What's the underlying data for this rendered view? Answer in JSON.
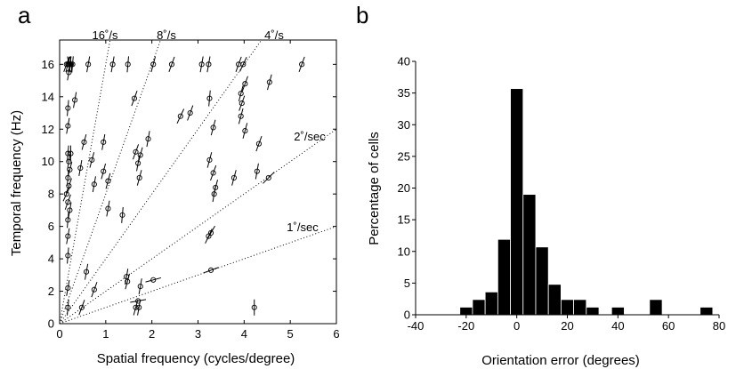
{
  "chart_data": [
    {
      "type": "scatter",
      "panel_label": "a",
      "xlabel": "Spatial frequency (cycles/degree)",
      "ylabel": "Temporal frequency (Hz)",
      "xlim": [
        0,
        6
      ],
      "ylim": [
        0,
        17.5
      ],
      "xticks": [
        "0",
        "1",
        "2",
        "3",
        "4",
        "5",
        "6"
      ],
      "yticks": [
        "0",
        "2",
        "4",
        "6",
        "8",
        "10",
        "12",
        "14",
        "16"
      ],
      "speed_lines": [
        {
          "label": "16˚/s",
          "speed": 16
        },
        {
          "label": "8˚/s",
          "speed": 8
        },
        {
          "label": "4˚/s",
          "speed": 4
        },
        {
          "label": "2˚/sec",
          "speed": 2
        },
        {
          "label": "1˚/sec",
          "speed": 1
        }
      ],
      "points": [
        {
          "x": 0.18,
          "y": 16.0,
          "angle": 75
        },
        {
          "x": 0.22,
          "y": 16.0,
          "angle": 80
        },
        {
          "x": 0.25,
          "y": 16.0,
          "angle": 95
        },
        {
          "x": 0.15,
          "y": 16.0,
          "angle": 70
        },
        {
          "x": 0.28,
          "y": 16.0,
          "angle": 85
        },
        {
          "x": 0.2,
          "y": 16.0,
          "angle": 100
        },
        {
          "x": 0.2,
          "y": 15.5,
          "angle": 80
        },
        {
          "x": 0.62,
          "y": 16.0,
          "angle": 80
        },
        {
          "x": 1.15,
          "y": 16.0,
          "angle": 80
        },
        {
          "x": 1.48,
          "y": 16.0,
          "angle": 85
        },
        {
          "x": 2.03,
          "y": 16.0,
          "angle": 75
        },
        {
          "x": 2.43,
          "y": 16.0,
          "angle": 70
        },
        {
          "x": 3.08,
          "y": 16.0,
          "angle": 80
        },
        {
          "x": 3.23,
          "y": 16.0,
          "angle": 80
        },
        {
          "x": 3.88,
          "y": 16.0,
          "angle": 70
        },
        {
          "x": 3.98,
          "y": 16.0,
          "angle": 65
        },
        {
          "x": 5.25,
          "y": 16.0,
          "angle": 70
        },
        {
          "x": 0.33,
          "y": 13.8,
          "angle": 80
        },
        {
          "x": 0.18,
          "y": 13.3,
          "angle": 85
        },
        {
          "x": 1.62,
          "y": 13.9,
          "angle": 70
        },
        {
          "x": 3.25,
          "y": 13.9,
          "angle": 85
        },
        {
          "x": 3.93,
          "y": 14.2,
          "angle": 75
        },
        {
          "x": 4.02,
          "y": 14.8,
          "angle": 70
        },
        {
          "x": 4.55,
          "y": 14.9,
          "angle": 75
        },
        {
          "x": 3.95,
          "y": 13.6,
          "angle": 70
        },
        {
          "x": 2.62,
          "y": 12.8,
          "angle": 65
        },
        {
          "x": 2.83,
          "y": 13.0,
          "angle": 70
        },
        {
          "x": 3.93,
          "y": 12.8,
          "angle": 75
        },
        {
          "x": 0.18,
          "y": 12.2,
          "angle": 80
        },
        {
          "x": 0.53,
          "y": 11.2,
          "angle": 75
        },
        {
          "x": 0.95,
          "y": 11.2,
          "angle": 80
        },
        {
          "x": 1.92,
          "y": 11.4,
          "angle": 80
        },
        {
          "x": 3.33,
          "y": 12.1,
          "angle": 75
        },
        {
          "x": 4.02,
          "y": 11.9,
          "angle": 75
        },
        {
          "x": 4.32,
          "y": 11.1,
          "angle": 70
        },
        {
          "x": 0.18,
          "y": 10.5,
          "angle": 85
        },
        {
          "x": 0.2,
          "y": 10.0,
          "angle": 80
        },
        {
          "x": 0.22,
          "y": 9.5,
          "angle": 75
        },
        {
          "x": 0.18,
          "y": 9.0,
          "angle": 85
        },
        {
          "x": 0.2,
          "y": 8.5,
          "angle": 70
        },
        {
          "x": 0.15,
          "y": 8.0,
          "angle": 65
        },
        {
          "x": 0.18,
          "y": 7.5,
          "angle": 70
        },
        {
          "x": 0.22,
          "y": 7.0,
          "angle": 80
        },
        {
          "x": 0.24,
          "y": 10.5,
          "angle": 90
        },
        {
          "x": 0.45,
          "y": 9.6,
          "angle": 80
        },
        {
          "x": 0.7,
          "y": 10.1,
          "angle": 75
        },
        {
          "x": 0.95,
          "y": 9.4,
          "angle": 75
        },
        {
          "x": 0.75,
          "y": 8.6,
          "angle": 80
        },
        {
          "x": 1.05,
          "y": 8.8,
          "angle": 75
        },
        {
          "x": 1.65,
          "y": 10.6,
          "angle": 70
        },
        {
          "x": 1.75,
          "y": 10.4,
          "angle": 75
        },
        {
          "x": 1.7,
          "y": 9.9,
          "angle": 80
        },
        {
          "x": 1.73,
          "y": 9.0,
          "angle": 75
        },
        {
          "x": 3.25,
          "y": 10.1,
          "angle": 75
        },
        {
          "x": 3.33,
          "y": 9.3,
          "angle": 70
        },
        {
          "x": 3.38,
          "y": 8.4,
          "angle": 75
        },
        {
          "x": 3.35,
          "y": 8.0,
          "angle": 80
        },
        {
          "x": 3.78,
          "y": 9.0,
          "angle": 75
        },
        {
          "x": 4.28,
          "y": 9.4,
          "angle": 80
        },
        {
          "x": 4.53,
          "y": 9.0,
          "angle": 45
        },
        {
          "x": 1.05,
          "y": 7.1,
          "angle": 80
        },
        {
          "x": 1.36,
          "y": 6.7,
          "angle": 85
        },
        {
          "x": 0.18,
          "y": 6.4,
          "angle": 85
        },
        {
          "x": 0.18,
          "y": 5.4,
          "angle": 80
        },
        {
          "x": 3.28,
          "y": 5.6,
          "angle": 60
        },
        {
          "x": 3.23,
          "y": 5.4,
          "angle": 65
        },
        {
          "x": 0.18,
          "y": 4.2,
          "angle": 85
        },
        {
          "x": 3.28,
          "y": 3.3,
          "angle": 20
        },
        {
          "x": 0.58,
          "y": 3.2,
          "angle": 80
        },
        {
          "x": 0.18,
          "y": 2.2,
          "angle": 80
        },
        {
          "x": 0.75,
          "y": 2.1,
          "angle": 70
        },
        {
          "x": 1.45,
          "y": 2.9,
          "angle": 80
        },
        {
          "x": 1.47,
          "y": 2.6,
          "angle": 75
        },
        {
          "x": 1.75,
          "y": 2.3,
          "angle": 80
        },
        {
          "x": 2.03,
          "y": 2.7,
          "angle": 15
        },
        {
          "x": 1.7,
          "y": 1.4,
          "angle": 10
        },
        {
          "x": 0.18,
          "y": 1.0,
          "angle": 85
        },
        {
          "x": 0.48,
          "y": 1.0,
          "angle": 70
        },
        {
          "x": 1.65,
          "y": 1.0,
          "angle": 75
        },
        {
          "x": 1.72,
          "y": 1.0,
          "angle": 80
        },
        {
          "x": 4.22,
          "y": 1.0,
          "angle": 90
        }
      ]
    },
    {
      "type": "bar",
      "panel_label": "b",
      "xlabel": "Orientation error (degrees)",
      "ylabel": "Percentage of cells",
      "xlim": [
        -40,
        80
      ],
      "ylim": [
        0,
        40
      ],
      "xticks": [
        "-40",
        "-20",
        "0",
        "20",
        "40",
        "60",
        "80"
      ],
      "yticks": [
        "0",
        "5",
        "10",
        "15",
        "20",
        "25",
        "30",
        "35",
        "40"
      ],
      "bin_width": 5,
      "bin_centers": [
        -20,
        -15,
        -10,
        -5,
        0,
        5,
        10,
        15,
        20,
        25,
        30,
        35,
        40,
        45,
        50,
        55,
        60,
        65,
        70,
        75
      ],
      "values": [
        1.2,
        2.4,
        3.6,
        11.9,
        35.7,
        19.0,
        10.7,
        4.8,
        2.4,
        2.4,
        1.2,
        0,
        1.2,
        0,
        0,
        2.4,
        0,
        0,
        0,
        1.2
      ]
    }
  ]
}
